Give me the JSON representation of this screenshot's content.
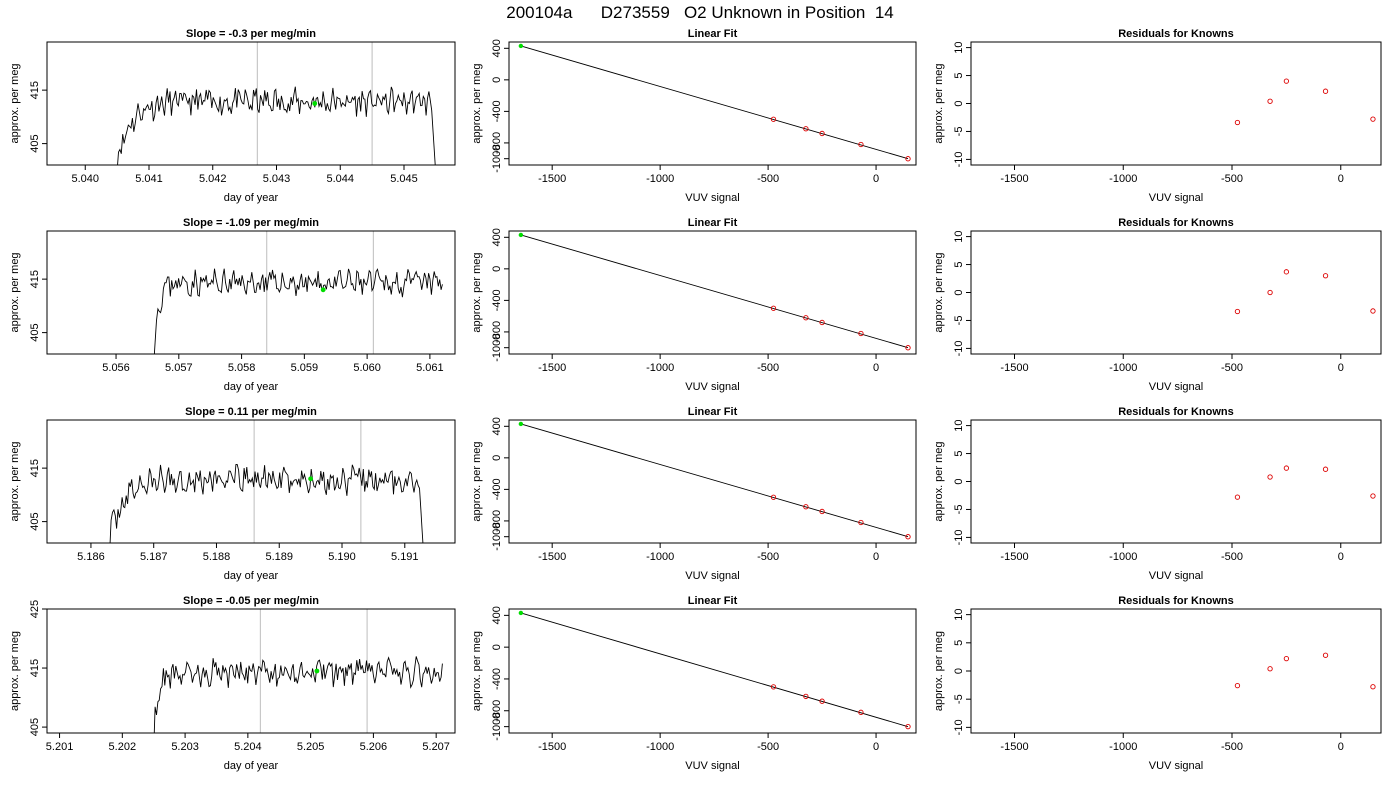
{
  "page": {
    "title": "200104a      D273559   O2 Unknown in Position  14"
  },
  "colors": {
    "line": "#000000",
    "vline": "#c8c8c8",
    "green": "#00dd00",
    "red": "#dd0000"
  },
  "chart_data": [
    {
      "type": "line",
      "title": "Slope =  -0.3  per meg/min",
      "xlabel": "day of year",
      "ylabel": "approx. per meg",
      "xlim": [
        5.0394,
        5.0458
      ],
      "ylim": [
        401,
        424
      ],
      "xticks": [
        "5.040",
        "5.041",
        "5.042",
        "5.043",
        "5.044",
        "5.045"
      ],
      "yticks": [
        "405",
        "415"
      ],
      "vlines": [
        5.0427,
        5.0445
      ],
      "series": {
        "x_start": 5.0405,
        "x_end": 5.0455,
        "points": 230,
        "rise": 0.0009,
        "base": 413.0,
        "noise": 2.2,
        "seed": 11,
        "tail_drop": true,
        "ramp_start": 402
      },
      "marker": {
        "x": 5.0436,
        "y": 412.5
      }
    },
    {
      "type": "scatter",
      "title": "Linear Fit",
      "xlabel": "VUV signal",
      "ylabel": "approx. per meg",
      "xlim": [
        -1700,
        185
      ],
      "ylim": [
        -1080,
        480
      ],
      "xticks": [
        -1500,
        -1000,
        -500,
        0
      ],
      "yticks": [
        -1000,
        -800,
        -400,
        0,
        400
      ],
      "ytick_labels": [
        "-1000",
        "-800",
        "-400",
        "0",
        "400"
      ],
      "fit": {
        "x": [
          -1645,
          148
        ],
        "y": [
          430,
          -1000
        ]
      },
      "knowns": {
        "x": [
          -475,
          -325,
          -250,
          -70,
          148
        ],
        "y": [
          -500,
          -620,
          -680,
          -820,
          -1000
        ]
      },
      "unknown": {
        "x": -1645,
        "y": 430
      }
    },
    {
      "type": "scatter",
      "title": "Residuals for Knowns",
      "xlabel": "VUV signal",
      "ylabel": "approx. per meg",
      "xlim": [
        -1700,
        185
      ],
      "ylim": [
        -11,
        11
      ],
      "xticks": [
        -1500,
        -1000,
        -500,
        0
      ],
      "yticks": [
        -10,
        -5,
        0,
        5,
        10
      ],
      "points": {
        "x": [
          -475,
          -325,
          -250,
          -70,
          148
        ],
        "y": [
          -3.4,
          0.4,
          4.0,
          2.2,
          -2.8
        ]
      }
    },
    {
      "type": "line",
      "title": "Slope =  -1.09  per meg/min",
      "xlabel": "day of year",
      "ylabel": "approx. per meg",
      "xlim": [
        5.0549,
        5.0614
      ],
      "ylim": [
        401,
        424
      ],
      "xticks": [
        "5.056",
        "5.057",
        "5.058",
        "5.059",
        "5.060",
        "5.061"
      ],
      "yticks": [
        "405",
        "415"
      ],
      "vlines": [
        5.0584,
        5.0601
      ],
      "series": {
        "x_start": 5.0566,
        "x_end": 5.0612,
        "points": 210,
        "rise": 0.0003,
        "base": 414.5,
        "noise": 2.0,
        "seed": 23,
        "tail_drop": false,
        "ramp_start": 401
      },
      "marker": {
        "x": 5.0593,
        "y": 413.0
      }
    },
    {
      "type": "scatter",
      "title": "Linear Fit",
      "xlabel": "VUV signal",
      "ylabel": "approx. per meg",
      "xlim": [
        -1700,
        185
      ],
      "ylim": [
        -1080,
        480
      ],
      "xticks": [
        -1500,
        -1000,
        -500,
        0
      ],
      "yticks": [
        -1000,
        -800,
        -400,
        0,
        400
      ],
      "ytick_labels": [
        "-1000",
        "-800",
        "-400",
        "0",
        "400"
      ],
      "fit": {
        "x": [
          -1645,
          148
        ],
        "y": [
          430,
          -1000
        ]
      },
      "knowns": {
        "x": [
          -475,
          -325,
          -250,
          -70,
          148
        ],
        "y": [
          -500,
          -620,
          -680,
          -820,
          -1000
        ]
      },
      "unknown": {
        "x": -1645,
        "y": 430
      }
    },
    {
      "type": "scatter",
      "title": "Residuals for Knowns",
      "xlabel": "VUV signal",
      "ylabel": "approx. per meg",
      "xlim": [
        -1700,
        185
      ],
      "ylim": [
        -11,
        11
      ],
      "xticks": [
        -1500,
        -1000,
        -500,
        0
      ],
      "yticks": [
        -10,
        -5,
        0,
        5,
        10
      ],
      "points": {
        "x": [
          -475,
          -325,
          -250,
          -70,
          148
        ],
        "y": [
          -3.4,
          0.0,
          3.7,
          3.0,
          -3.3
        ]
      }
    },
    {
      "type": "line",
      "title": "Slope =  0.11  per meg/min",
      "xlabel": "day of year",
      "ylabel": "approx. per meg",
      "xlim": [
        5.1853,
        5.1918
      ],
      "ylim": [
        401,
        424
      ],
      "xticks": [
        "5.186",
        "5.187",
        "5.188",
        "5.189",
        "5.190",
        "5.191"
      ],
      "yticks": [
        "405",
        "415"
      ],
      "vlines": [
        5.1886,
        5.1903
      ],
      "series": {
        "x_start": 5.1863,
        "x_end": 5.1913,
        "points": 230,
        "rise": 0.0009,
        "base": 413.0,
        "noise": 2.2,
        "seed": 37,
        "tail_drop": true,
        "ramp_start": 402
      },
      "marker": {
        "x": 5.1895,
        "y": 413.0
      }
    },
    {
      "type": "scatter",
      "title": "Linear Fit",
      "xlabel": "VUV signal",
      "ylabel": "approx. per meg",
      "xlim": [
        -1700,
        185
      ],
      "ylim": [
        -1080,
        480
      ],
      "xticks": [
        -1500,
        -1000,
        -500,
        0
      ],
      "yticks": [
        -1000,
        -800,
        -400,
        0,
        400
      ],
      "ytick_labels": [
        "-1000",
        "-800",
        "-400",
        "0",
        "400"
      ],
      "fit": {
        "x": [
          -1645,
          148
        ],
        "y": [
          430,
          -1000
        ]
      },
      "knowns": {
        "x": [
          -475,
          -325,
          -250,
          -70,
          148
        ],
        "y": [
          -500,
          -620,
          -680,
          -820,
          -1000
        ]
      },
      "unknown": {
        "x": -1645,
        "y": 430
      }
    },
    {
      "type": "scatter",
      "title": "Residuals for Knowns",
      "xlabel": "VUV signal",
      "ylabel": "approx. per meg",
      "xlim": [
        -1700,
        185
      ],
      "ylim": [
        -11,
        11
      ],
      "xticks": [
        -1500,
        -1000,
        -500,
        0
      ],
      "yticks": [
        -10,
        -5,
        0,
        5,
        10
      ],
      "points": {
        "x": [
          -475,
          -325,
          -250,
          -70,
          148
        ],
        "y": [
          -2.8,
          0.8,
          2.4,
          2.2,
          -2.6
        ]
      }
    },
    {
      "type": "line",
      "title": "Slope =  -0.05  per meg/min",
      "xlabel": "day of year",
      "ylabel": "approx. per meg",
      "xlim": [
        5.2008,
        5.2073
      ],
      "ylim": [
        404,
        425
      ],
      "xticks": [
        "5.201",
        "5.202",
        "5.203",
        "5.204",
        "5.205",
        "5.206",
        "5.207"
      ],
      "yticks": [
        "405",
        "415",
        "425"
      ],
      "vlines": [
        5.2042,
        5.2059
      ],
      "series": {
        "x_start": 5.2025,
        "x_end": 5.2071,
        "points": 210,
        "rise": 0.0003,
        "base": 414.5,
        "noise": 2.0,
        "seed": 53,
        "tail_drop": false,
        "ramp_start": 403
      },
      "marker": {
        "x": 5.2051,
        "y": 414.5
      }
    },
    {
      "type": "scatter",
      "title": "Linear Fit",
      "xlabel": "VUV signal",
      "ylabel": "approx. per meg",
      "xlim": [
        -1700,
        185
      ],
      "ylim": [
        -1080,
        480
      ],
      "xticks": [
        -1500,
        -1000,
        -500,
        0
      ],
      "yticks": [
        -1000,
        -800,
        -400,
        0,
        400
      ],
      "ytick_labels": [
        "-1000",
        "-800",
        "-400",
        "0",
        "400"
      ],
      "fit": {
        "x": [
          -1645,
          148
        ],
        "y": [
          430,
          -1000
        ]
      },
      "knowns": {
        "x": [
          -475,
          -325,
          -250,
          -70,
          148
        ],
        "y": [
          -500,
          -620,
          -680,
          -820,
          -1000
        ]
      },
      "unknown": {
        "x": -1645,
        "y": 430
      }
    },
    {
      "type": "scatter",
      "title": "Residuals for Knowns",
      "xlabel": "VUV signal",
      "ylabel": "approx. per meg",
      "xlim": [
        -1700,
        185
      ],
      "ylim": [
        -11,
        11
      ],
      "xticks": [
        -1500,
        -1000,
        -500,
        0
      ],
      "yticks": [
        -10,
        -5,
        0,
        5,
        10
      ],
      "points": {
        "x": [
          -475,
          -325,
          -250,
          -70,
          148
        ],
        "y": [
          -2.6,
          0.4,
          2.2,
          2.8,
          -2.8
        ]
      }
    }
  ]
}
